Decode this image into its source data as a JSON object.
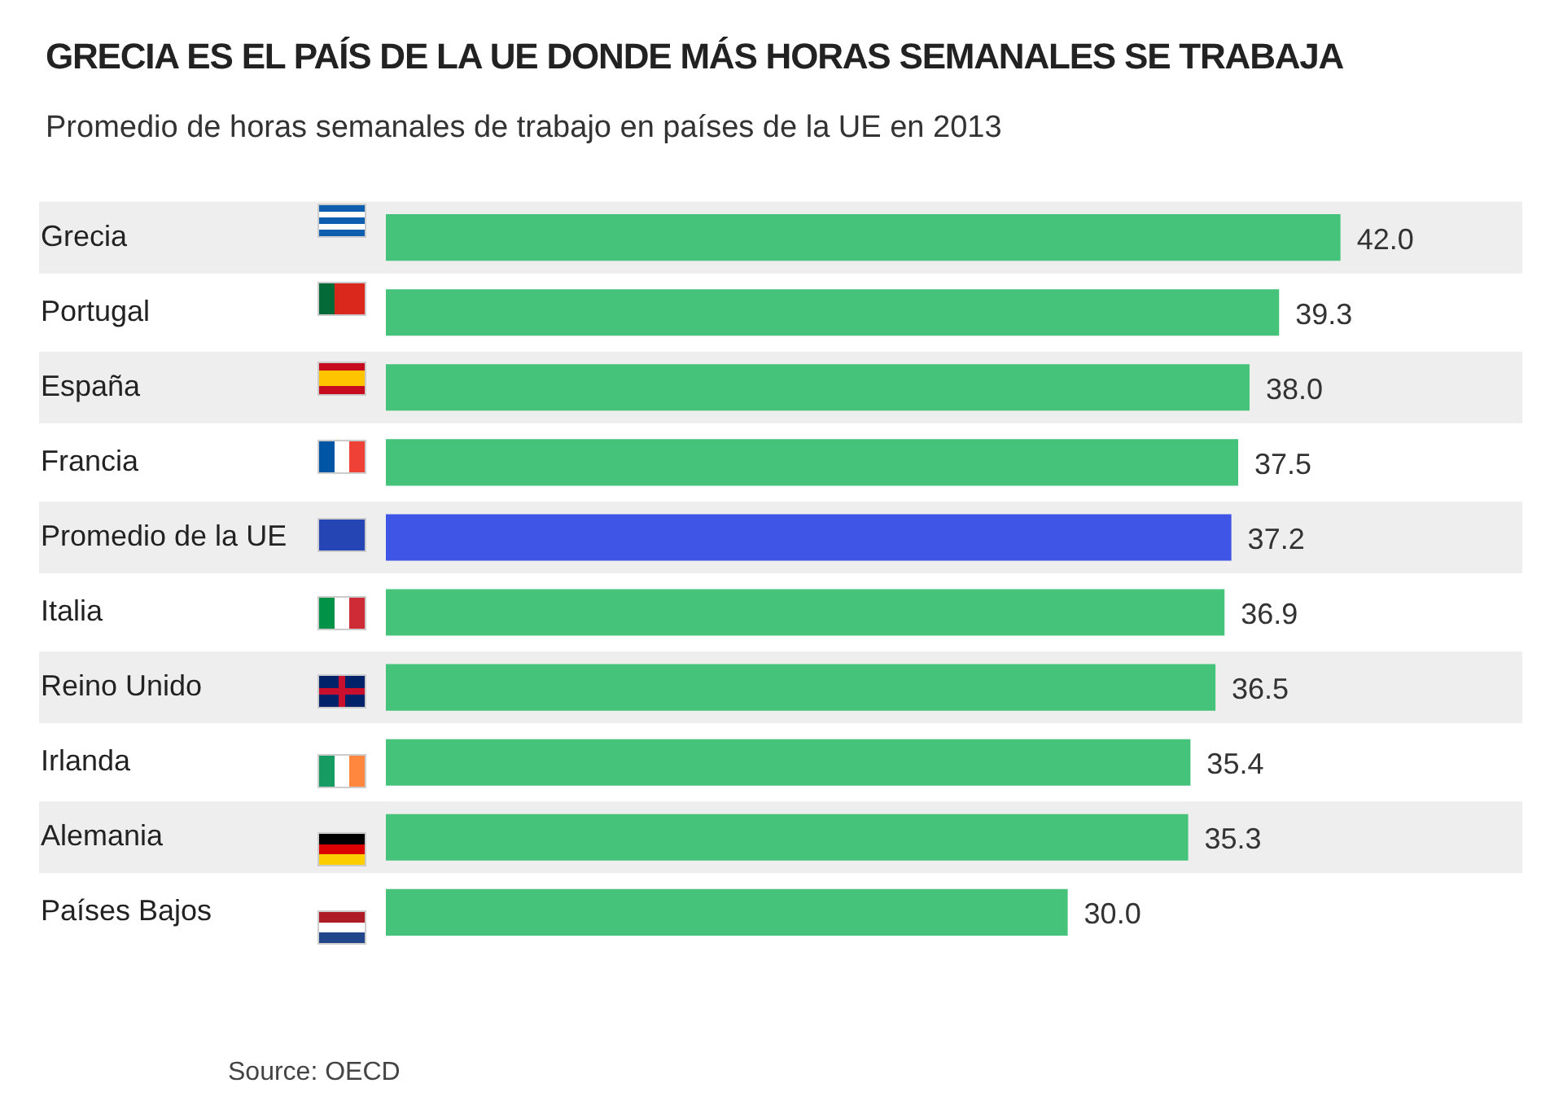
{
  "chart_data": {
    "type": "bar",
    "orientation": "horizontal",
    "title": "GRECIA ES EL PAÍS DE LA UE DONDE MÁS HORAS SEMANALES SE TRABAJA",
    "subtitle": "Promedio de horas semanales de trabajo en países de la UE en 2013",
    "categories": [
      "Grecia",
      "Portugal",
      "España",
      "Francia",
      "Promedio de la UE",
      "Italia",
      "Reino Unido",
      "Irlanda",
      "Alemania",
      "Países Bajos"
    ],
    "values": [
      42.0,
      39.3,
      38.0,
      37.5,
      37.2,
      36.9,
      36.5,
      35.4,
      35.3,
      30.0
    ],
    "colors": [
      "#45c37a",
      "#45c37a",
      "#45c37a",
      "#45c37a",
      "#3e55e6",
      "#45c37a",
      "#45c37a",
      "#45c37a",
      "#45c37a",
      "#45c37a"
    ],
    "value_labels": [
      "42.0",
      "39.3",
      "38.0",
      "37.5",
      "37.2",
      "36.9",
      "36.5",
      "35.4",
      "35.3",
      "30.0"
    ],
    "tick_labels": "y",
    "annotations": [
      "Source: OECD"
    ]
  }
}
